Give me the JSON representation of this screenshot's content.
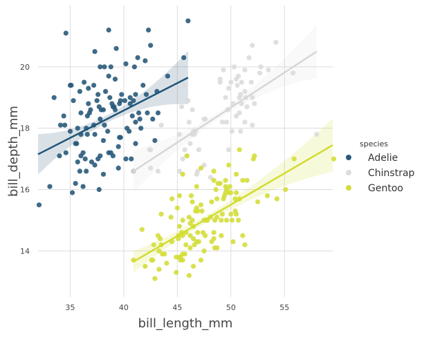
{
  "chart_data": {
    "type": "scatter",
    "xlabel": "bill_length_mm",
    "ylabel": "bill_depth_mm",
    "xlim": [
      32,
      59.5
    ],
    "ylim": [
      12.5,
      22
    ],
    "xticks": [
      35,
      40,
      45,
      50,
      55
    ],
    "yticks": [
      14,
      16,
      18,
      20
    ],
    "grid": true,
    "legend": {
      "title": "species",
      "placement": "right"
    },
    "series": [
      {
        "name": "Adelie",
        "color": "#2a5a7b",
        "regression": {
          "x": [
            32,
            46
          ],
          "y": [
            17.15,
            19.65
          ]
        },
        "ci_band": true,
        "points": [
          [
            32.1,
            15.5
          ],
          [
            33.1,
            16.1
          ],
          [
            33.5,
            19.0
          ],
          [
            34.0,
            17.1
          ],
          [
            34.1,
            18.1
          ],
          [
            34.4,
            18.4
          ],
          [
            34.5,
            18.1
          ],
          [
            34.6,
            21.1
          ],
          [
            34.6,
            17.2
          ],
          [
            35.0,
            17.9
          ],
          [
            35.1,
            19.4
          ],
          [
            35.2,
            15.9
          ],
          [
            35.3,
            18.9
          ],
          [
            35.5,
            17.5
          ],
          [
            35.5,
            16.2
          ],
          [
            35.6,
            17.5
          ],
          [
            35.7,
            16.9
          ],
          [
            35.7,
            18.0
          ],
          [
            35.9,
            19.2
          ],
          [
            35.9,
            16.6
          ],
          [
            36.0,
            18.5
          ],
          [
            36.0,
            17.8
          ],
          [
            36.0,
            17.1
          ],
          [
            36.2,
            17.2
          ],
          [
            36.2,
            16.1
          ],
          [
            36.3,
            19.5
          ],
          [
            36.4,
            17.0
          ],
          [
            36.5,
            18.0
          ],
          [
            36.5,
            16.6
          ],
          [
            36.6,
            17.8
          ],
          [
            36.6,
            18.4
          ],
          [
            36.7,
            19.3
          ],
          [
            36.7,
            18.8
          ],
          [
            36.8,
            18.5
          ],
          [
            36.9,
            18.6
          ],
          [
            37.0,
            16.9
          ],
          [
            37.2,
            18.1
          ],
          [
            37.2,
            19.4
          ],
          [
            37.3,
            20.5
          ],
          [
            37.3,
            17.8
          ],
          [
            37.3,
            16.8
          ],
          [
            37.5,
            18.9
          ],
          [
            37.6,
            19.1
          ],
          [
            37.6,
            17.0
          ],
          [
            37.7,
            18.7
          ],
          [
            37.7,
            16.0
          ],
          [
            37.8,
            20.0
          ],
          [
            37.8,
            18.3
          ],
          [
            37.8,
            17.1
          ],
          [
            37.9,
            18.6
          ],
          [
            38.1,
            18.6
          ],
          [
            38.1,
            17.6
          ],
          [
            38.1,
            16.5
          ],
          [
            38.2,
            18.1
          ],
          [
            38.2,
            20.0
          ],
          [
            38.3,
            19.2
          ],
          [
            38.5,
            17.9
          ],
          [
            38.6,
            21.2
          ],
          [
            38.6,
            17.2
          ],
          [
            38.7,
            19.0
          ],
          [
            38.8,
            17.2
          ],
          [
            38.8,
            20.0
          ],
          [
            38.9,
            18.8
          ],
          [
            39.0,
            17.1
          ],
          [
            39.0,
            18.7
          ],
          [
            39.1,
            18.7
          ],
          [
            39.2,
            19.6
          ],
          [
            39.2,
            18.6
          ],
          [
            39.3,
            20.6
          ],
          [
            39.5,
            17.4
          ],
          [
            39.5,
            16.7
          ],
          [
            39.6,
            17.7
          ],
          [
            39.6,
            18.8
          ],
          [
            39.7,
            17.7
          ],
          [
            39.7,
            18.9
          ],
          [
            39.8,
            19.1
          ],
          [
            40.1,
            18.9
          ],
          [
            40.2,
            17.0
          ],
          [
            40.2,
            20.1
          ],
          [
            40.3,
            18.0
          ],
          [
            40.5,
            17.9
          ],
          [
            40.6,
            18.8
          ],
          [
            40.6,
            19.0
          ],
          [
            40.7,
            17.0
          ],
          [
            40.8,
            18.4
          ],
          [
            40.9,
            16.6
          ],
          [
            40.9,
            18.9
          ],
          [
            41.0,
            20.0
          ],
          [
            41.1,
            17.5
          ],
          [
            41.1,
            18.2
          ],
          [
            41.1,
            19.1
          ],
          [
            41.3,
            20.3
          ],
          [
            41.4,
            18.5
          ],
          [
            41.5,
            18.3
          ],
          [
            41.6,
            18.0
          ],
          [
            41.8,
            19.4
          ],
          [
            42.0,
            20.2
          ],
          [
            42.1,
            19.1
          ],
          [
            42.2,
            18.5
          ],
          [
            42.3,
            21.2
          ],
          [
            42.5,
            20.7
          ],
          [
            42.7,
            18.3
          ],
          [
            42.9,
            17.6
          ],
          [
            43.1,
            19.2
          ],
          [
            43.2,
            18.5
          ],
          [
            44.1,
            19.7
          ],
          [
            45.6,
            20.3
          ],
          [
            46.0,
            21.5
          ],
          [
            35.0,
            19.4
          ],
          [
            38.6,
            19.7
          ]
        ]
      },
      {
        "name": "Chinstrap",
        "color": "#dcdcdc",
        "regression": {
          "x": [
            40.9,
            58.0
          ],
          "y": [
            16.6,
            20.5
          ]
        },
        "ci_band": true,
        "points": [
          [
            40.9,
            16.6
          ],
          [
            42.4,
            17.3
          ],
          [
            42.5,
            16.7
          ],
          [
            42.5,
            17.3
          ],
          [
            43.2,
            16.6
          ],
          [
            43.5,
            18.1
          ],
          [
            45.2,
            16.6
          ],
          [
            45.2,
            17.8
          ],
          [
            45.4,
            18.7
          ],
          [
            45.5,
            17.0
          ],
          [
            45.6,
            19.4
          ],
          [
            45.7,
            17.3
          ],
          [
            45.9,
            17.1
          ],
          [
            46.0,
            18.9
          ],
          [
            46.1,
            18.2
          ],
          [
            46.2,
            17.5
          ],
          [
            46.4,
            18.6
          ],
          [
            46.4,
            17.8
          ],
          [
            46.5,
            17.9
          ],
          [
            46.6,
            17.8
          ],
          [
            46.7,
            17.9
          ],
          [
            46.8,
            16.5
          ],
          [
            46.9,
            16.6
          ],
          [
            47.0,
            17.3
          ],
          [
            47.5,
            16.8
          ],
          [
            47.6,
            18.3
          ],
          [
            48.1,
            16.4
          ],
          [
            49.0,
            19.5
          ],
          [
            49.2,
            18.2
          ],
          [
            49.3,
            19.9
          ],
          [
            49.5,
            19.0
          ],
          [
            49.6,
            18.2
          ],
          [
            49.7,
            18.6
          ],
          [
            49.8,
            17.3
          ],
          [
            50.0,
            19.5
          ],
          [
            50.1,
            17.9
          ],
          [
            50.2,
            18.8
          ],
          [
            50.3,
            20.0
          ],
          [
            50.5,
            18.4
          ],
          [
            50.5,
            19.6
          ],
          [
            50.6,
            19.4
          ],
          [
            50.7,
            19.7
          ],
          [
            50.8,
            18.5
          ],
          [
            50.8,
            19.0
          ],
          [
            50.9,
            17.9
          ],
          [
            50.9,
            19.1
          ],
          [
            51.0,
            18.8
          ],
          [
            51.3,
            18.2
          ],
          [
            51.3,
            19.2
          ],
          [
            51.3,
            19.9
          ],
          [
            51.4,
            19.0
          ],
          [
            51.5,
            18.7
          ],
          [
            51.7,
            20.3
          ],
          [
            51.9,
            19.5
          ],
          [
            52.0,
            18.1
          ],
          [
            52.0,
            19.0
          ],
          [
            52.0,
            20.7
          ],
          [
            52.2,
            18.8
          ],
          [
            52.7,
            19.8
          ],
          [
            52.8,
            20.0
          ],
          [
            53.5,
            19.9
          ],
          [
            54.2,
            20.8
          ],
          [
            55.8,
            19.8
          ],
          [
            58.0,
            17.8
          ],
          [
            49.0,
            19.6
          ],
          [
            47.5,
            18.3
          ],
          [
            51.0,
            19.5
          ],
          [
            49.8,
            19.3
          ]
        ]
      },
      {
        "name": "Gentoo",
        "color": "#d4de3a",
        "regression": {
          "x": [
            40.9,
            59.5
          ],
          "y": [
            13.65,
            17.45
          ]
        },
        "ci_band": true,
        "points": [
          [
            40.9,
            13.7
          ],
          [
            41.7,
            14.7
          ],
          [
            42.0,
            13.5
          ],
          [
            42.6,
            13.7
          ],
          [
            42.7,
            13.7
          ],
          [
            42.8,
            14.2
          ],
          [
            42.9,
            13.1
          ],
          [
            43.2,
            14.5
          ],
          [
            43.3,
            13.4
          ],
          [
            43.3,
            14.0
          ],
          [
            43.4,
            14.4
          ],
          [
            43.5,
            14.2
          ],
          [
            43.5,
            15.2
          ],
          [
            43.6,
            13.9
          ],
          [
            43.8,
            13.9
          ],
          [
            44.0,
            13.6
          ],
          [
            44.4,
            15.1
          ],
          [
            44.5,
            14.3
          ],
          [
            44.5,
            15.7
          ],
          [
            44.9,
            13.3
          ],
          [
            44.9,
            13.8
          ],
          [
            45.0,
            15.4
          ],
          [
            45.1,
            14.5
          ],
          [
            45.1,
            14.4
          ],
          [
            45.2,
            13.8
          ],
          [
            45.2,
            14.8
          ],
          [
            45.2,
            15.8
          ],
          [
            45.3,
            13.8
          ],
          [
            45.3,
            13.7
          ],
          [
            45.4,
            14.6
          ],
          [
            45.5,
            13.7
          ],
          [
            45.5,
            13.9
          ],
          [
            45.5,
            14.5
          ],
          [
            45.5,
            15.0
          ],
          [
            45.7,
            13.9
          ],
          [
            45.8,
            14.6
          ],
          [
            45.8,
            14.2
          ],
          [
            45.9,
            17.1
          ],
          [
            46.1,
            13.2
          ],
          [
            46.1,
            15.1
          ],
          [
            46.2,
            14.1
          ],
          [
            46.2,
            14.5
          ],
          [
            46.2,
            14.9
          ],
          [
            46.3,
            15.8
          ],
          [
            46.4,
            15.0
          ],
          [
            46.4,
            15.6
          ],
          [
            46.5,
            13.5
          ],
          [
            46.5,
            14.4
          ],
          [
            46.5,
            14.8
          ],
          [
            46.6,
            14.2
          ],
          [
            46.7,
            15.3
          ],
          [
            46.8,
            14.3
          ],
          [
            46.8,
            15.4
          ],
          [
            46.8,
            16.1
          ],
          [
            46.9,
            14.6
          ],
          [
            47.0,
            14.3
          ],
          [
            47.2,
            13.7
          ],
          [
            47.2,
            15.5
          ],
          [
            47.3,
            15.3
          ],
          [
            47.4,
            14.6
          ],
          [
            47.5,
            14.0
          ],
          [
            47.5,
            15.0
          ],
          [
            47.6,
            14.5
          ],
          [
            47.7,
            15.0
          ],
          [
            47.8,
            15.0
          ],
          [
            48.1,
            15.1
          ],
          [
            48.2,
            14.3
          ],
          [
            48.2,
            15.6
          ],
          [
            48.4,
            14.4
          ],
          [
            48.4,
            14.6
          ],
          [
            48.4,
            16.3
          ],
          [
            48.5,
            14.1
          ],
          [
            48.5,
            15.0
          ],
          [
            48.6,
            16.0
          ],
          [
            48.7,
            14.1
          ],
          [
            48.7,
            15.1
          ],
          [
            48.7,
            15.7
          ],
          [
            48.8,
            16.2
          ],
          [
            49.0,
            16.2
          ],
          [
            49.1,
            14.5
          ],
          [
            49.1,
            15.0
          ],
          [
            49.2,
            15.2
          ],
          [
            49.3,
            15.7
          ],
          [
            49.4,
            15.8
          ],
          [
            49.5,
            15.9
          ],
          [
            49.5,
            16.1
          ],
          [
            49.6,
            15.0
          ],
          [
            49.6,
            16.0
          ],
          [
            49.8,
            15.9
          ],
          [
            49.8,
            16.8
          ],
          [
            49.9,
            16.1
          ],
          [
            50.0,
            15.2
          ],
          [
            50.0,
            15.9
          ],
          [
            50.1,
            15.0
          ],
          [
            50.2,
            14.3
          ],
          [
            50.4,
            15.3
          ],
          [
            50.4,
            15.7
          ],
          [
            50.5,
            15.2
          ],
          [
            50.5,
            15.9
          ],
          [
            50.7,
            15.0
          ],
          [
            50.8,
            15.7
          ],
          [
            50.8,
            17.3
          ],
          [
            51.1,
            14.5
          ],
          [
            51.1,
            16.3
          ],
          [
            51.3,
            14.2
          ],
          [
            51.5,
            16.3
          ],
          [
            52.1,
            17.0
          ],
          [
            52.2,
            17.1
          ],
          [
            52.5,
            15.6
          ],
          [
            53.4,
            15.8
          ],
          [
            54.3,
            15.7
          ],
          [
            55.1,
            16.0
          ],
          [
            55.9,
            17.0
          ],
          [
            59.6,
            17.0
          ],
          [
            45.5,
            16.5
          ],
          [
            47.2,
            16.7
          ],
          [
            48.4,
            16.6
          ],
          [
            49.5,
            16.3
          ],
          [
            50.5,
            16.5
          ],
          [
            46.9,
            15.3
          ]
        ]
      }
    ]
  }
}
